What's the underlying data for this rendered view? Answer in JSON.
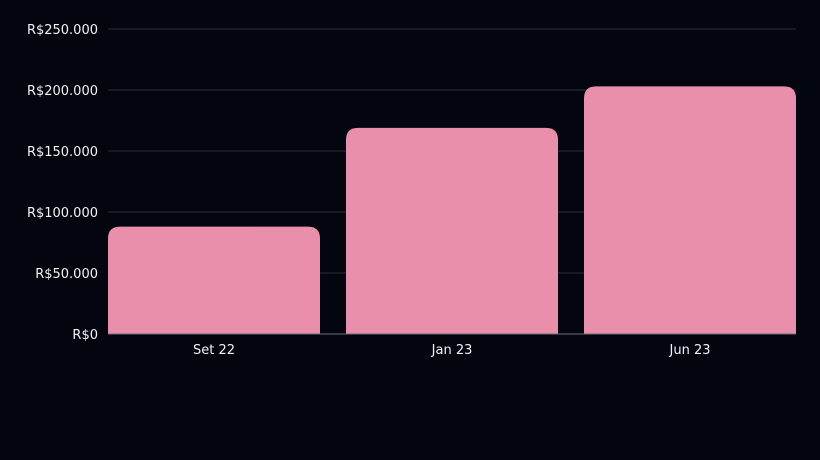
{
  "chart_data": {
    "type": "bar",
    "title": "",
    "xlabel": "",
    "ylabel": "",
    "categories": [
      "Set 22",
      "Jan 23",
      "Jun 23"
    ],
    "values": [
      88000,
      169000,
      203000
    ],
    "ylim": [
      0,
      250000
    ],
    "y_ticks": [
      0,
      50000,
      100000,
      150000,
      200000,
      250000
    ],
    "y_tick_labels": [
      "R$0",
      "R$50.000",
      "R$100.000",
      "R$150.000",
      "R$200.000",
      "R$250.000"
    ],
    "grid": true,
    "legend": "none",
    "colors": {
      "bar": "#ea8fab",
      "background": "#03060f",
      "grid": "#2a2d38",
      "text": "#f2f2f2"
    }
  }
}
